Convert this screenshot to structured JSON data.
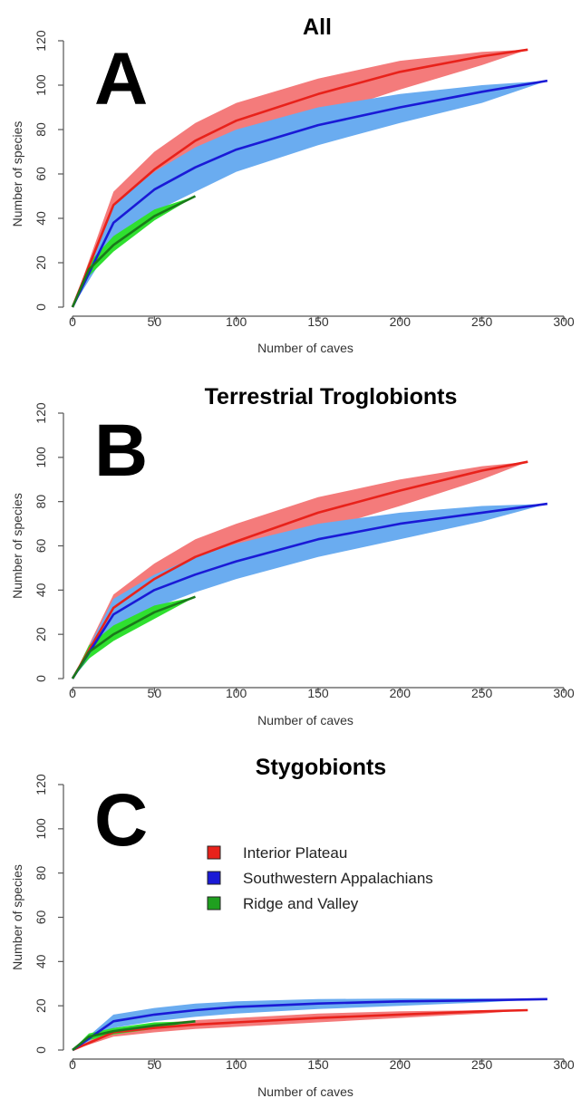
{
  "colors": {
    "interior_plateau_band": "#f47b7b",
    "interior_plateau_line": "#e8221b",
    "sw_appalachians_band": "#6aacf0",
    "sw_appalachians_line": "#1a1ad6",
    "ridge_valley_band": "#2fe02f",
    "ridge_valley_line": "#1a7a1a"
  },
  "legend": {
    "items": [
      {
        "label": "Interior Plateau",
        "color": "#e8221b"
      },
      {
        "label": "Southwestern Appalachians",
        "color": "#1a1ad6"
      },
      {
        "label": "Ridge and Valley",
        "color": "#1fa01f"
      }
    ]
  },
  "chart_data": [
    {
      "type": "area",
      "letter": "A",
      "title": "All",
      "xlabel": "Number of caves",
      "ylabel": "Number of species",
      "xlim": [
        0,
        300
      ],
      "ylim": [
        0,
        120
      ],
      "xticks": [
        "0",
        "50",
        "100",
        "150",
        "200",
        "250",
        "300"
      ],
      "yticks": [
        "0",
        "20",
        "40",
        "60",
        "80",
        "100",
        "120"
      ],
      "series": [
        {
          "name": "Interior Plateau",
          "x": [
            0,
            25,
            50,
            75,
            100,
            150,
            200,
            250,
            278
          ],
          "y": [
            0,
            46,
            62,
            75,
            84,
            96,
            106,
            113,
            116
          ],
          "lower": [
            0,
            38,
            53,
            64,
            72,
            86,
            98,
            109,
            116
          ],
          "upper": [
            0,
            52,
            70,
            83,
            92,
            103,
            111,
            115,
            116
          ]
        },
        {
          "name": "Southwestern Appalachians",
          "x": [
            0,
            25,
            50,
            75,
            100,
            150,
            200,
            250,
            290
          ],
          "y": [
            0,
            38,
            53,
            63,
            71,
            82,
            90,
            97,
            102
          ],
          "lower": [
            0,
            30,
            43,
            52,
            61,
            73,
            83,
            92,
            102
          ],
          "upper": [
            0,
            46,
            61,
            72,
            80,
            90,
            96,
            100,
            102
          ]
        },
        {
          "name": "Ridge and Valley",
          "x": [
            0,
            10,
            25,
            50,
            75
          ],
          "y": [
            0,
            17,
            28,
            41,
            50
          ],
          "lower": [
            0,
            14,
            25,
            39,
            50
          ],
          "upper": [
            0,
            20,
            32,
            44,
            50
          ]
        }
      ]
    },
    {
      "type": "area",
      "letter": "B",
      "title": "Terrestrial Troglobionts",
      "xlabel": "Number of caves",
      "ylabel": "Number of species",
      "xlim": [
        0,
        300
      ],
      "ylim": [
        0,
        120
      ],
      "xticks": [
        "0",
        "50",
        "100",
        "150",
        "200",
        "250",
        "300"
      ],
      "yticks": [
        "0",
        "20",
        "40",
        "60",
        "80",
        "100",
        "120"
      ],
      "series": [
        {
          "name": "Interior Plateau",
          "x": [
            0,
            25,
            50,
            75,
            100,
            150,
            200,
            250,
            278
          ],
          "y": [
            0,
            32,
            45,
            55,
            62,
            75,
            85,
            94,
            98
          ],
          "lower": [
            0,
            26,
            38,
            47,
            54,
            67,
            78,
            90,
            98
          ],
          "upper": [
            0,
            38,
            52,
            63,
            70,
            82,
            90,
            96,
            98
          ]
        },
        {
          "name": "Southwestern Appalachians",
          "x": [
            0,
            25,
            50,
            75,
            100,
            150,
            200,
            250,
            290
          ],
          "y": [
            0,
            29,
            40,
            47,
            53,
            63,
            70,
            75,
            79
          ],
          "lower": [
            0,
            22,
            32,
            39,
            45,
            55,
            63,
            71,
            79
          ],
          "upper": [
            0,
            36,
            47,
            55,
            61,
            70,
            75,
            78,
            79
          ]
        },
        {
          "name": "Ridge and Valley",
          "x": [
            0,
            10,
            25,
            50,
            75
          ],
          "y": [
            0,
            12,
            20,
            30,
            37
          ],
          "lower": [
            0,
            9,
            17,
            27,
            37
          ],
          "upper": [
            0,
            15,
            24,
            33,
            37
          ]
        }
      ]
    },
    {
      "type": "area",
      "letter": "C",
      "title": "Stygobionts",
      "xlabel": "Number of caves",
      "ylabel": "Number of species",
      "xlim": [
        0,
        300
      ],
      "ylim": [
        0,
        120
      ],
      "xticks": [
        "0",
        "50",
        "100",
        "150",
        "200",
        "250",
        "300"
      ],
      "yticks": [
        "0",
        "20",
        "40",
        "60",
        "80",
        "100",
        "120"
      ],
      "series": [
        {
          "name": "Interior Plateau",
          "x": [
            0,
            25,
            50,
            75,
            100,
            150,
            200,
            250,
            278
          ],
          "y": [
            0,
            8,
            10,
            11.5,
            12.5,
            14.5,
            16,
            17.5,
            18
          ],
          "lower": [
            0,
            6,
            8,
            9.5,
            10.5,
            12.5,
            14.5,
            16.5,
            18
          ],
          "upper": [
            0,
            10,
            12,
            13.5,
            14.5,
            16.5,
            17.5,
            18,
            18
          ]
        },
        {
          "name": "Southwestern Appalachians",
          "x": [
            0,
            25,
            50,
            75,
            100,
            150,
            200,
            250,
            290
          ],
          "y": [
            0,
            13,
            16,
            18,
            19.5,
            21,
            22,
            22.5,
            23
          ],
          "lower": [
            0,
            10,
            13,
            15,
            16.5,
            18.5,
            20,
            21.5,
            23
          ],
          "upper": [
            0,
            16,
            19,
            21,
            22,
            23,
            23.3,
            23.3,
            23
          ]
        },
        {
          "name": "Ridge and Valley",
          "x": [
            0,
            10,
            25,
            50,
            75
          ],
          "y": [
            0,
            6,
            8.5,
            11,
            13
          ],
          "lower": [
            0,
            4.5,
            7,
            9.5,
            13
          ],
          "upper": [
            0,
            7.5,
            10,
            12.5,
            13
          ]
        }
      ]
    }
  ]
}
